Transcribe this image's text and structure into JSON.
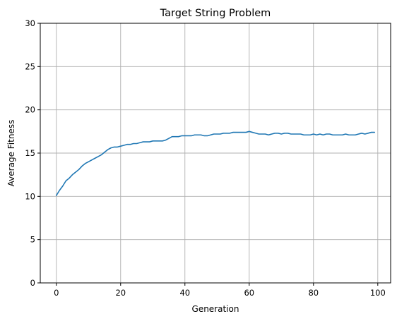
{
  "chart_data": {
    "type": "line",
    "title": "Target String Problem",
    "xlabel": "Generation",
    "ylabel": "Average Fitness",
    "xlim": [
      -5,
      104
    ],
    "ylim": [
      0,
      30
    ],
    "xticks": [
      0,
      20,
      40,
      60,
      80,
      100
    ],
    "yticks": [
      0,
      5,
      10,
      15,
      20,
      25,
      30
    ],
    "grid": true,
    "series": [
      {
        "name": "",
        "color": "#1f77b4",
        "x": [
          0,
          1,
          2,
          3,
          4,
          5,
          6,
          7,
          8,
          9,
          10,
          11,
          12,
          13,
          14,
          15,
          16,
          17,
          18,
          19,
          20,
          21,
          22,
          23,
          24,
          25,
          26,
          27,
          28,
          29,
          30,
          31,
          32,
          33,
          34,
          35,
          36,
          37,
          38,
          39,
          40,
          41,
          42,
          43,
          44,
          45,
          46,
          47,
          48,
          49,
          50,
          51,
          52,
          53,
          54,
          55,
          56,
          57,
          58,
          59,
          60,
          61,
          62,
          63,
          64,
          65,
          66,
          67,
          68,
          69,
          70,
          71,
          72,
          73,
          74,
          75,
          76,
          77,
          78,
          79,
          80,
          81,
          82,
          83,
          84,
          85,
          86,
          87,
          88,
          89,
          90,
          91,
          92,
          93,
          94,
          95,
          96,
          97,
          98,
          99
        ],
        "y": [
          10.1,
          10.7,
          11.2,
          11.8,
          12.1,
          12.5,
          12.8,
          13.1,
          13.5,
          13.8,
          14.0,
          14.2,
          14.4,
          14.6,
          14.8,
          15.1,
          15.4,
          15.6,
          15.7,
          15.7,
          15.8,
          15.9,
          16.0,
          16.0,
          16.1,
          16.1,
          16.2,
          16.3,
          16.3,
          16.3,
          16.4,
          16.4,
          16.4,
          16.4,
          16.5,
          16.7,
          16.9,
          16.9,
          16.9,
          17.0,
          17.0,
          17.0,
          17.0,
          17.1,
          17.1,
          17.1,
          17.0,
          17.0,
          17.1,
          17.2,
          17.2,
          17.2,
          17.3,
          17.3,
          17.3,
          17.4,
          17.4,
          17.4,
          17.4,
          17.4,
          17.5,
          17.4,
          17.3,
          17.2,
          17.2,
          17.2,
          17.1,
          17.2,
          17.3,
          17.3,
          17.2,
          17.3,
          17.3,
          17.2,
          17.2,
          17.2,
          17.2,
          17.1,
          17.1,
          17.1,
          17.2,
          17.1,
          17.2,
          17.1,
          17.2,
          17.2,
          17.1,
          17.1,
          17.1,
          17.1,
          17.2,
          17.1,
          17.1,
          17.1,
          17.2,
          17.3,
          17.2,
          17.3,
          17.4,
          17.4
        ]
      }
    ]
  }
}
